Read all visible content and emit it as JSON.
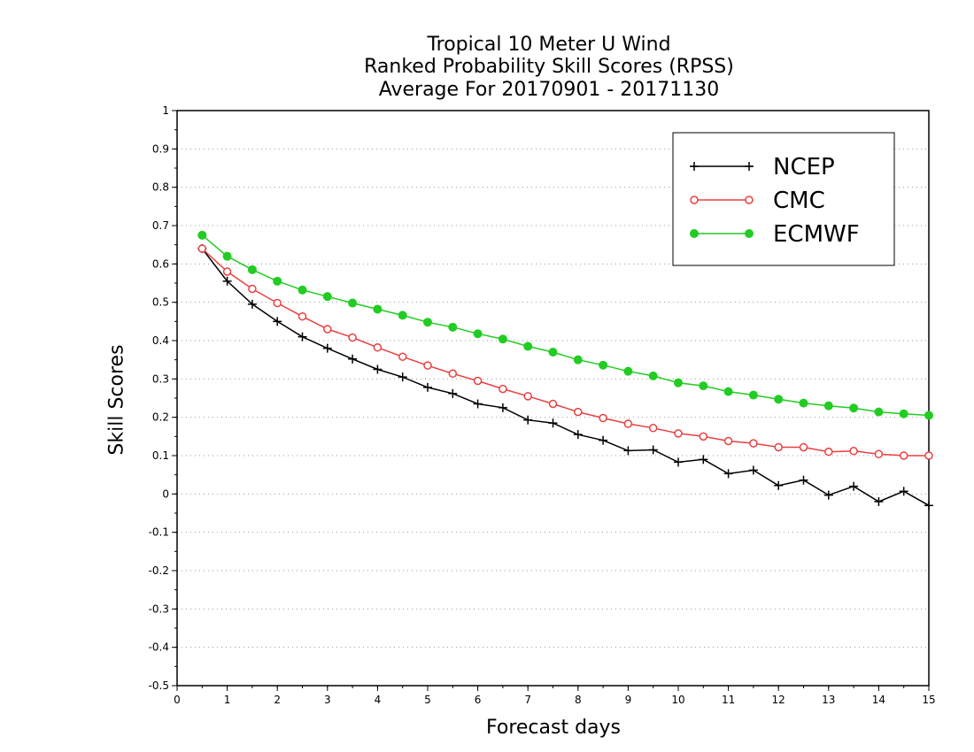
{
  "chart_data": {
    "type": "line",
    "title": [
      "Tropical 10 Meter U Wind",
      "Ranked Probability Skill Scores (RPSS)",
      "Average For 20170901 - 20171130"
    ],
    "xlabel": "Forecast days",
    "ylabel": "Skill Scores",
    "xlim": [
      0,
      15
    ],
    "ylim": [
      -0.5,
      1
    ],
    "xticks": [
      "0",
      "1",
      "2",
      "3",
      "4",
      "5",
      "6",
      "7",
      "8",
      "9",
      "10",
      "11",
      "12",
      "13",
      "14",
      "15"
    ],
    "yticks": [
      "-0.5",
      "-0.4",
      "-0.3",
      "-0.2",
      "-0.1",
      "0",
      "0.1",
      "0.2",
      "0.3",
      "0.4",
      "0.5",
      "0.6",
      "0.7",
      "0.8",
      "0.9",
      "1"
    ],
    "grid": "horizontal dotted",
    "legend_position": "top-right",
    "x": [
      0.5,
      1,
      1.5,
      2,
      2.5,
      3,
      3.5,
      4,
      4.5,
      5,
      5.5,
      6,
      6.5,
      7,
      7.5,
      8,
      8.5,
      9,
      9.5,
      10,
      10.5,
      11,
      11.5,
      12,
      12.5,
      13,
      13.5,
      14,
      14.5,
      15
    ],
    "series": [
      {
        "name": "NCEP",
        "color": "#000000",
        "marker": "plus",
        "values": [
          0.64,
          0.555,
          0.495,
          0.45,
          0.41,
          0.38,
          0.352,
          0.325,
          0.305,
          0.278,
          0.262,
          0.235,
          0.225,
          0.193,
          0.185,
          0.155,
          0.14,
          0.113,
          0.115,
          0.083,
          0.09,
          0.053,
          0.062,
          0.022,
          0.036,
          -0.003,
          0.02,
          -0.02,
          0.007,
          -0.03
        ]
      },
      {
        "name": "CMC",
        "color": "#e84040",
        "marker": "open-circle",
        "values": [
          0.64,
          0.58,
          0.535,
          0.498,
          0.463,
          0.43,
          0.408,
          0.382,
          0.358,
          0.335,
          0.314,
          0.295,
          0.274,
          0.255,
          0.235,
          0.214,
          0.198,
          0.183,
          0.172,
          0.158,
          0.15,
          0.138,
          0.132,
          0.122,
          0.122,
          0.11,
          0.112,
          0.104,
          0.1,
          0.1
        ]
      },
      {
        "name": "ECMWF",
        "color": "#22cc22",
        "marker": "filled-circle",
        "values": [
          0.675,
          0.62,
          0.585,
          0.555,
          0.532,
          0.515,
          0.498,
          0.482,
          0.466,
          0.448,
          0.435,
          0.418,
          0.404,
          0.385,
          0.37,
          0.35,
          0.336,
          0.32,
          0.308,
          0.29,
          0.282,
          0.267,
          0.258,
          0.247,
          0.237,
          0.23,
          0.224,
          0.214,
          0.209,
          0.205
        ]
      }
    ]
  }
}
